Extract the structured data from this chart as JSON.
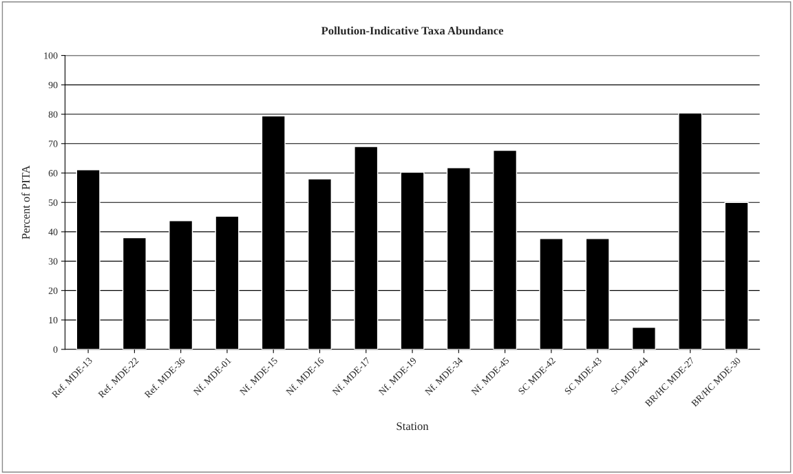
{
  "chart_data": {
    "type": "bar",
    "title": "Pollution-Indicative Taxa Abundance",
    "xlabel": "Station",
    "ylabel": "Percent of PITA",
    "categories": [
      "Ref. MDE-13",
      "Ref. MDE-22",
      "Ref. MDE-36",
      "Nf. MDE-01",
      "Nf. MDE-15",
      "Nf. MDE-16",
      "Nf. MDE-17",
      "Nf. MDE-19",
      "Nf. MDE-34",
      "Nf. MDE-45",
      "SC MDE-42",
      "SC MDE-43",
      "SC MDE-44",
      "BR/HC MDE-27",
      "BR/HC MDE-30"
    ],
    "values": [
      61.1,
      38,
      43.8,
      45.3,
      79.4,
      58,
      69,
      60.3,
      61.8,
      67.7,
      37.7,
      37.7,
      7.5,
      80.4,
      50
    ],
    "color": "#000000",
    "ylim": [
      0,
      100
    ],
    "yticks": [
      0,
      10,
      20,
      30,
      40,
      50,
      60,
      70,
      80,
      90,
      100
    ],
    "grid": "y"
  }
}
